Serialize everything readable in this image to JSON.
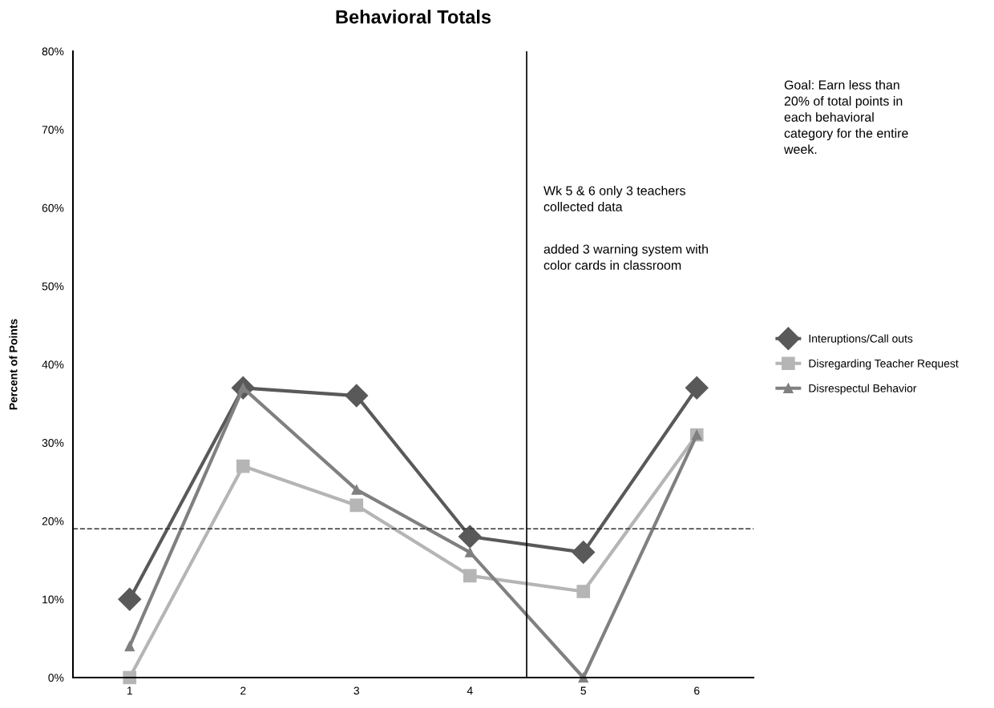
{
  "chart_data": {
    "type": "line",
    "title": "Behavioral Totals",
    "ylabel": "Percent of Points",
    "x": [
      1,
      2,
      3,
      4,
      5,
      6
    ],
    "xlim": [
      0.5,
      6.5
    ],
    "xticks": [
      1,
      2,
      3,
      4,
      5,
      6
    ],
    "ylim": [
      0,
      80
    ],
    "yticks": [
      {
        "value": 0,
        "label": "0%"
      },
      {
        "value": 10,
        "label": "10%"
      },
      {
        "value": 20,
        "label": "20%"
      },
      {
        "value": 30,
        "label": "30%"
      },
      {
        "value": 40,
        "label": "40%"
      },
      {
        "value": 50,
        "label": "50%"
      },
      {
        "value": 60,
        "label": "60%"
      },
      {
        "value": 70,
        "label": "70%"
      },
      {
        "value": 80,
        "label": "80%"
      }
    ],
    "series": [
      {
        "name": "Interuptions/Call outs",
        "color": "#595959",
        "marker": "diamond",
        "values": [
          10,
          37,
          36,
          18,
          16,
          37
        ]
      },
      {
        "name": "Disregarding Teacher Request",
        "color": "#b5b5b5",
        "marker": "square",
        "values": [
          0,
          27,
          22,
          13,
          11,
          31
        ]
      },
      {
        "name": "Disrespectul Behavior",
        "color": "#808080",
        "marker": "triangle",
        "values": [
          4,
          37,
          24,
          16,
          0,
          31
        ]
      }
    ],
    "ref_lines": [
      {
        "axis": "y",
        "value": 19,
        "color": "#333333",
        "line_style": "dashed"
      },
      {
        "axis": "x",
        "value": 4.5,
        "color": "#000000",
        "line_style": "solid"
      }
    ],
    "annotations": [
      "Goal: Earn less than\n20% of total points in\neach behavioral\ncategory for the entire\nweek.",
      "Wk 5 & 6 only 3 teachers\ncollected data",
      "added 3 warning system with\ncolor cards in classroom"
    ],
    "grid": false,
    "legend": "right",
    "line_style": "solid"
  }
}
